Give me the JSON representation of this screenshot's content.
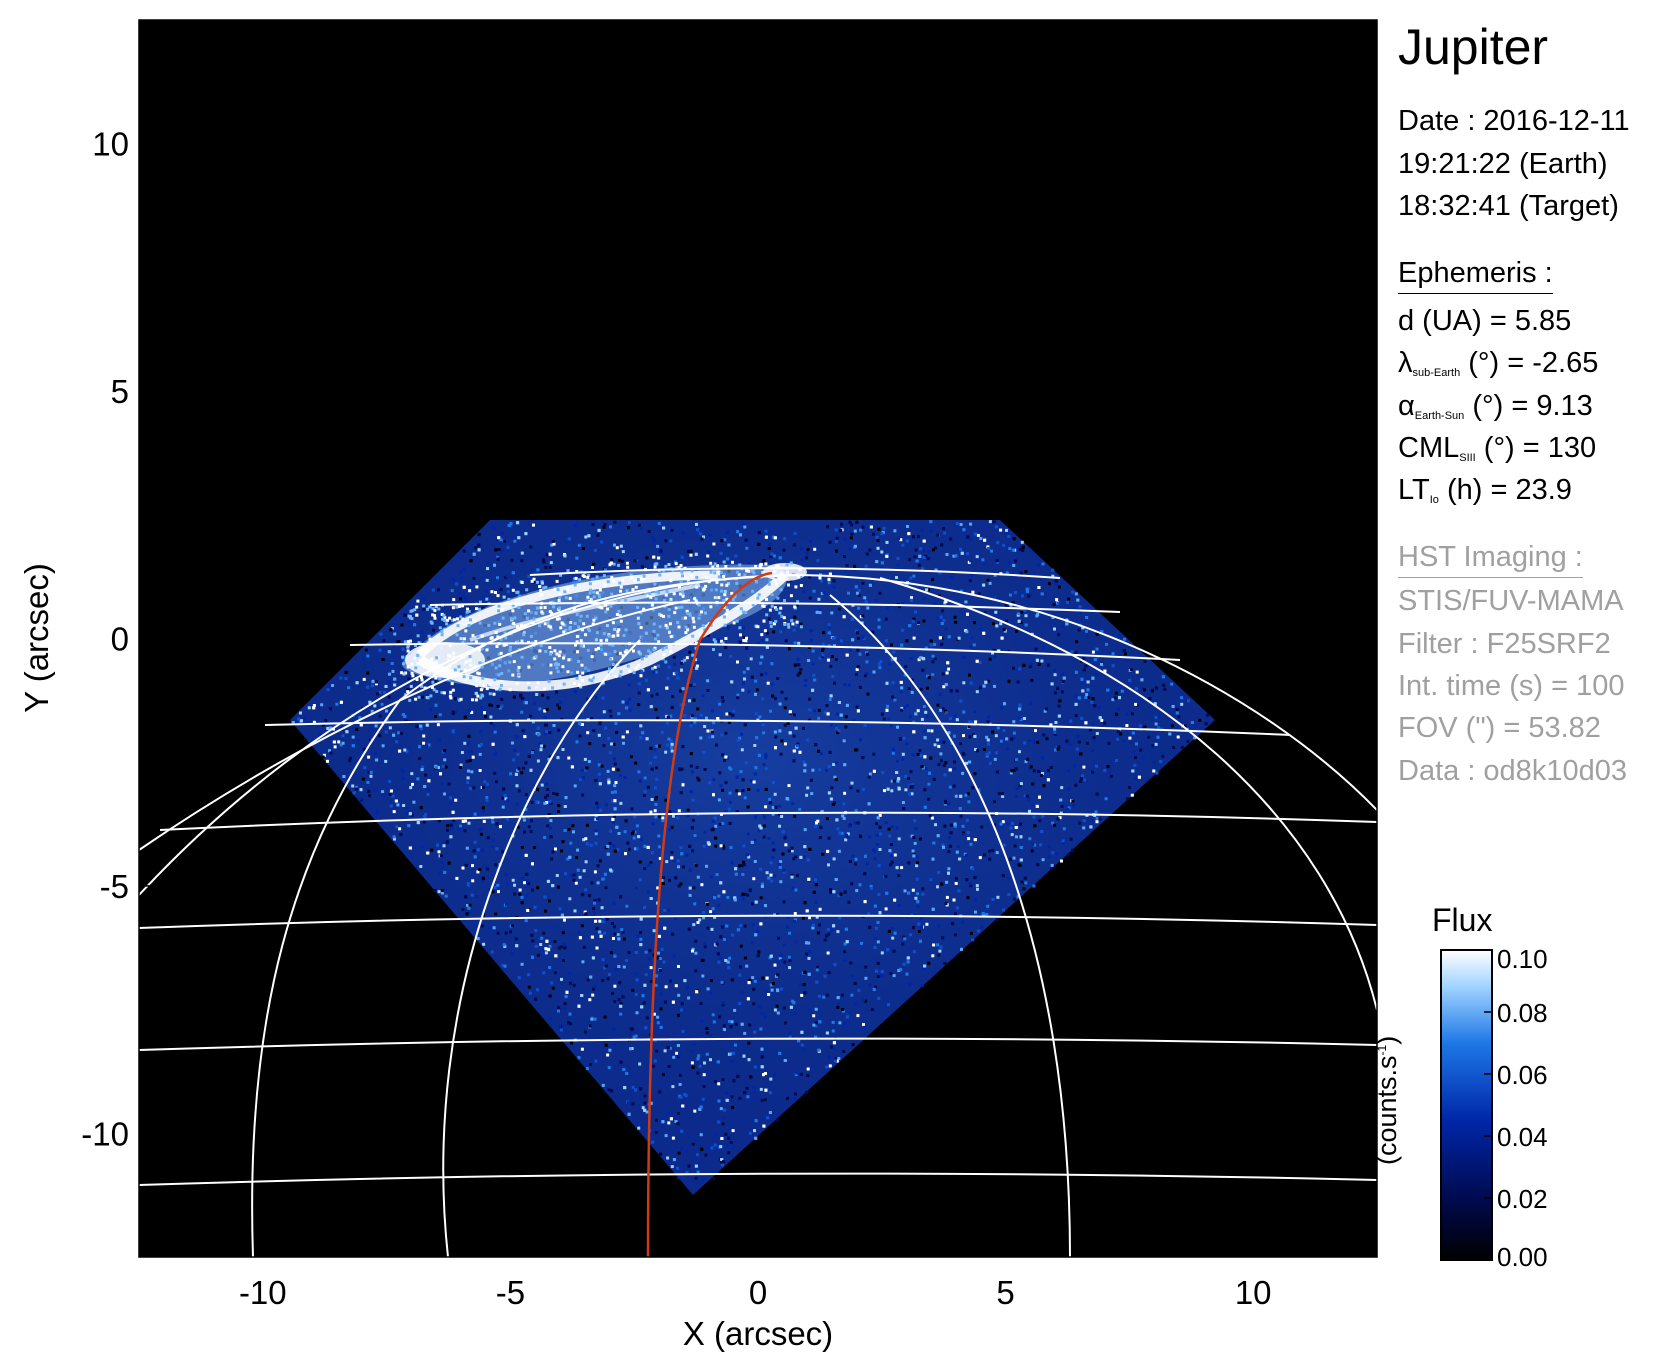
{
  "chart_data": {
    "type": "heatmap",
    "title": "Jupiter",
    "xlabel": "X (arcsec)",
    "ylabel": "Y (arcsec)",
    "xlim": [
      -12.5,
      12.5
    ],
    "ylim": [
      -12.5,
      12.5
    ],
    "xticks": [
      -10,
      -5,
      0,
      5,
      10
    ],
    "yticks": [
      10,
      5,
      0,
      -5,
      -10
    ],
    "colorbar": {
      "title": "Flux",
      "unit_text": "(counts.s",
      "unit_sup": "-1",
      "unit_close": ")",
      "ticks": [
        "0.10",
        "0.08",
        "0.06",
        "0.04",
        "0.02",
        "0.00"
      ],
      "range": [
        0.0,
        0.1
      ],
      "colors": [
        "#000000",
        "#000a50",
        "#0026a8",
        "#1e78e6",
        "#9fd2ff",
        "#ffffff"
      ]
    },
    "grid_color": "#ffffff",
    "io_footprint_color": "#d23a10",
    "background_color": "#000000"
  },
  "info": {
    "planet": "Jupiter",
    "date_line": "Date : 2016-12-11",
    "earth_time": "19:21:22 (Earth)",
    "target_time": "18:32:41 (Target)",
    "ephemeris_header": "Ephemeris :",
    "distance": "d (UA)    = 5.85",
    "lambda_symbol": "λ",
    "lambda_sub": "sub-Earth",
    "lambda_value": " (°) = -2.65",
    "alpha_symbol": "α",
    "alpha_sub": "Earth-Sun",
    "alpha_value": " (°) = 9.13",
    "cml_main": "CML",
    "cml_sub": "SIII",
    "cml_value": " (°) = 130",
    "lt_main": "LT",
    "lt_sub": "Io",
    "lt_value": " (h) = 23.9",
    "hst_header": "HST Imaging :",
    "instrument": "STIS/FUV-MAMA",
    "filter": "Filter : F25SRF2",
    "int_time": "Int. time (s) = 100",
    "fov": "FOV (\") = 53.82",
    "data_id": "Data : od8k10d03"
  }
}
